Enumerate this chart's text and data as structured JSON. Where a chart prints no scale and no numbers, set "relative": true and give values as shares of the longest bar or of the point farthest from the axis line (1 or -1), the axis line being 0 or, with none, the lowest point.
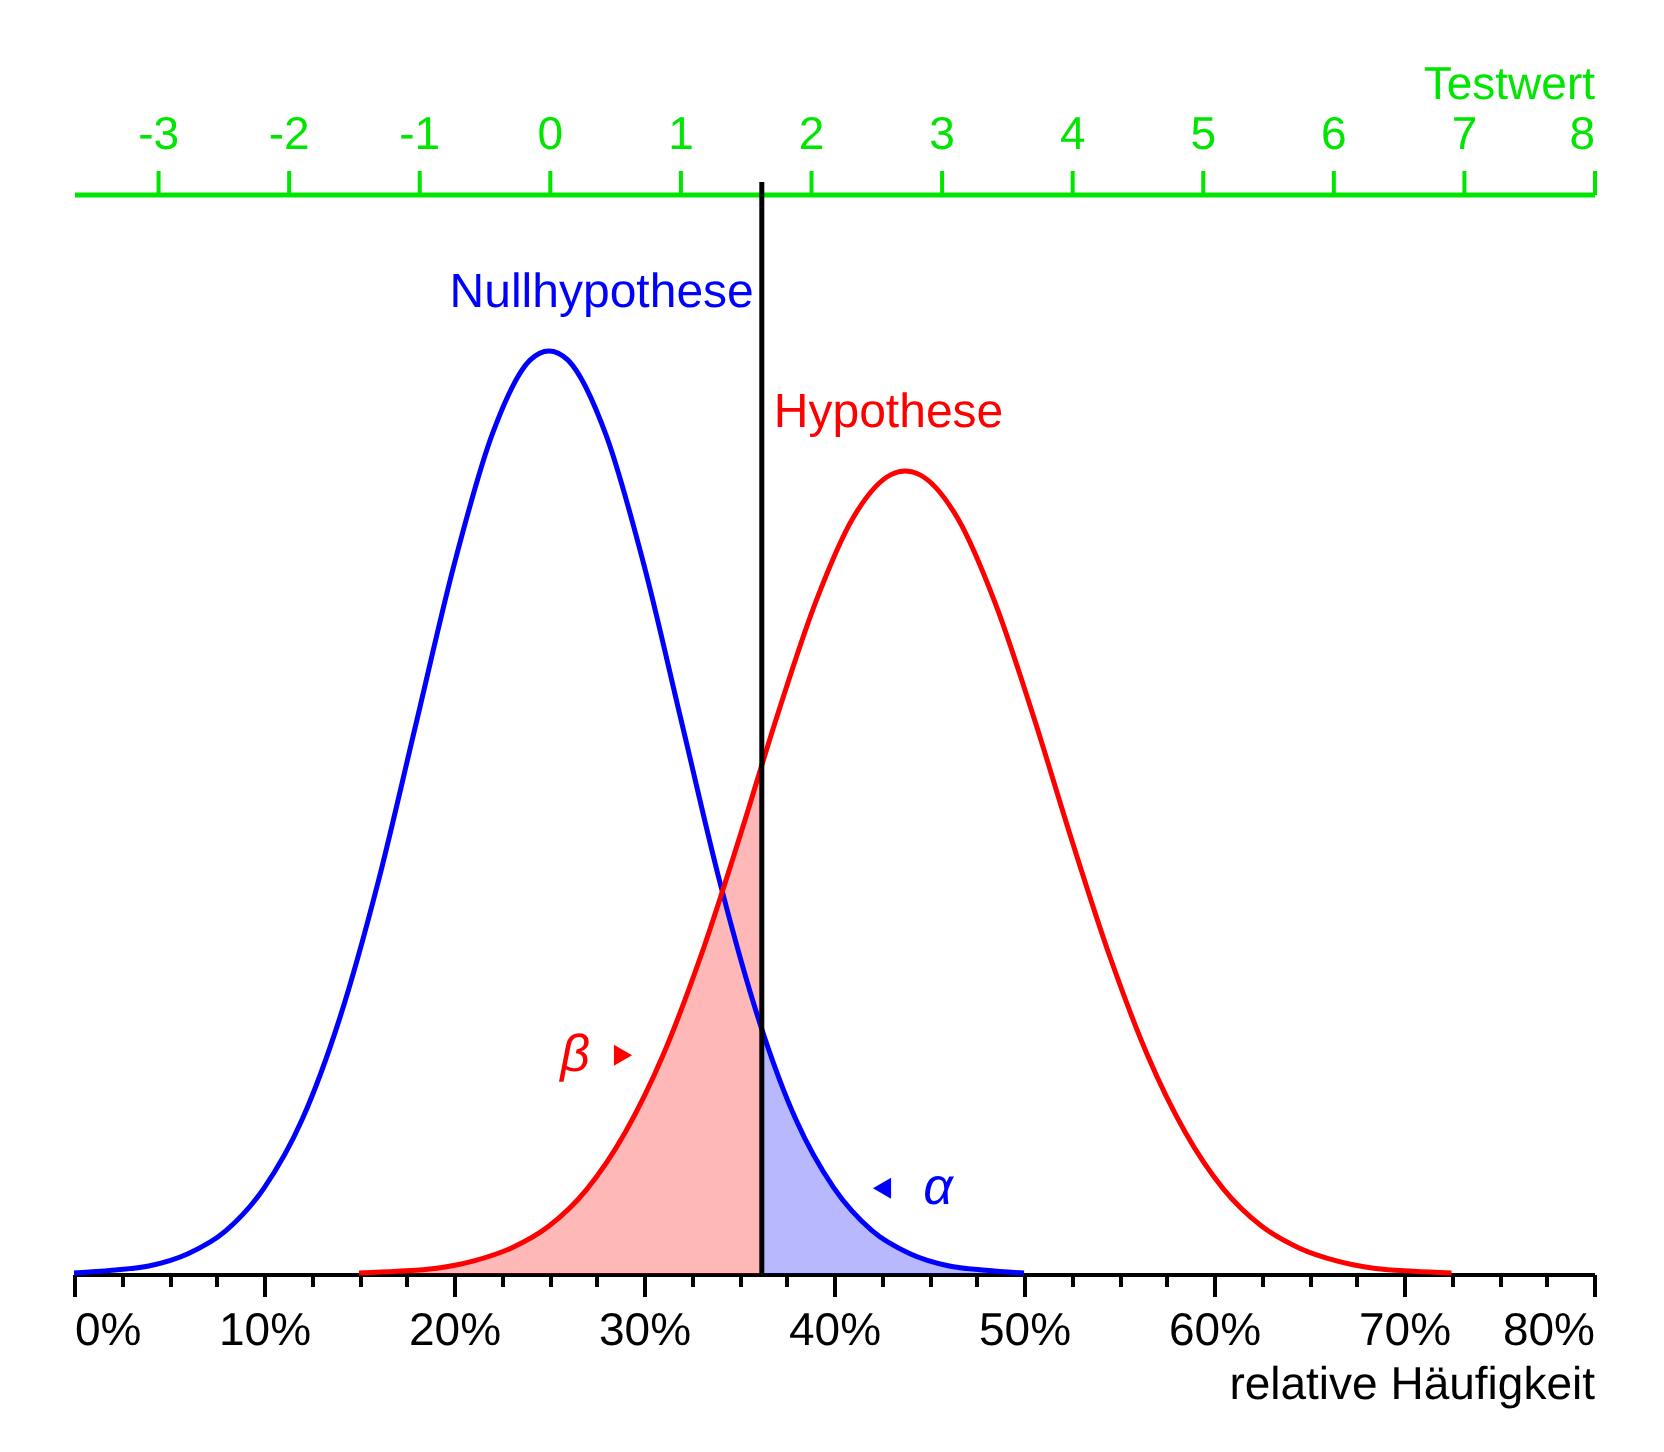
{
  "chart_data": {
    "type": "line",
    "relative": true,
    "xlabel": "relative Häufigkeit",
    "x2label": "Testwert",
    "xlim": [
      0,
      80
    ],
    "xticks": [
      {
        "value": 0,
        "label": "0%"
      },
      {
        "value": 2.5,
        "label": null
      },
      {
        "value": 5,
        "label": null
      },
      {
        "value": 7.5,
        "label": null
      },
      {
        "value": 10,
        "label": "10%"
      },
      {
        "value": 12.5,
        "label": null
      },
      {
        "value": 15,
        "label": null
      },
      {
        "value": 17.5,
        "label": null
      },
      {
        "value": 20,
        "label": "20%"
      },
      {
        "value": 22.5,
        "label": null
      },
      {
        "value": 25,
        "label": null
      },
      {
        "value": 27.5,
        "label": null
      },
      {
        "value": 30,
        "label": "30%"
      },
      {
        "value": 32.5,
        "label": null
      },
      {
        "value": 35,
        "label": null
      },
      {
        "value": 37.5,
        "label": null
      },
      {
        "value": 40,
        "label": "40%"
      },
      {
        "value": 42.5,
        "label": null
      },
      {
        "value": 45,
        "label": null
      },
      {
        "value": 47.5,
        "label": null
      },
      {
        "value": 50,
        "label": "50%"
      },
      {
        "value": 52.5,
        "label": null
      },
      {
        "value": 55,
        "label": null
      },
      {
        "value": 57.5,
        "label": null
      },
      {
        "value": 60,
        "label": "60%"
      },
      {
        "value": 62.5,
        "label": null
      },
      {
        "value": 65,
        "label": null
      },
      {
        "value": 67.5,
        "label": null
      },
      {
        "value": 70,
        "label": "70%"
      },
      {
        "value": 72.5,
        "label": null
      },
      {
        "value": 75,
        "label": null
      },
      {
        "value": 77.5,
        "label": null
      },
      {
        "value": 80,
        "label": "80%"
      }
    ],
    "x2lim": [
      -3.64,
      8
    ],
    "x2ticks": [
      -3,
      -2,
      -1,
      0,
      1,
      2,
      3,
      4,
      5,
      6,
      7,
      8
    ],
    "series": [
      {
        "name": "Nullhypothese",
        "color": "#0000ff",
        "x": [
          0,
          2,
          4,
          6,
          8,
          10,
          12,
          14,
          16,
          18,
          20,
          22,
          24,
          25,
          26,
          28,
          30,
          32,
          34,
          36,
          38,
          40,
          42,
          44,
          46,
          48,
          50
        ],
        "values": [
          0.001,
          0.004,
          0.009,
          0.022,
          0.047,
          0.093,
          0.167,
          0.278,
          0.424,
          0.596,
          0.768,
          0.909,
          0.99,
          1,
          0.99,
          0.909,
          0.768,
          0.596,
          0.424,
          0.278,
          0.167,
          0.093,
          0.047,
          0.022,
          0.009,
          0.004,
          0.001
        ]
      },
      {
        "name": "Hypothese",
        "color": "#ff0000",
        "x": [
          15,
          17,
          19,
          21,
          23,
          25,
          27,
          29,
          31,
          33,
          35,
          37,
          39,
          41,
          43,
          43.75,
          44.5,
          46.5,
          48.5,
          50.5,
          52.5,
          54.5,
          56.5,
          58.5,
          60.5,
          62.5,
          64.5,
          66.5,
          68.5,
          70.5,
          72.5
        ],
        "values": [
          0.001,
          0.003,
          0.006,
          0.014,
          0.028,
          0.052,
          0.092,
          0.153,
          0.237,
          0.345,
          0.471,
          0.604,
          0.726,
          0.819,
          0.866,
          0.87,
          0.866,
          0.819,
          0.726,
          0.604,
          0.471,
          0.345,
          0.237,
          0.153,
          0.092,
          0.052,
          0.028,
          0.014,
          0.006,
          0.003,
          0.001
        ]
      },
      {
        "name": "β",
        "type": "area",
        "color": "#ff0000",
        "x": [
          15,
          17,
          19,
          21,
          23,
          25,
          27,
          29,
          31,
          33,
          35,
          36.2
        ],
        "values": [
          0.001,
          0.003,
          0.006,
          0.014,
          0.028,
          0.052,
          0.092,
          0.153,
          0.237,
          0.345,
          0.471,
          0.551
        ]
      },
      {
        "name": "α",
        "type": "area",
        "color": "#0000ff",
        "x": [
          36.2,
          38,
          40,
          42,
          44,
          46,
          48,
          50
        ],
        "values": [
          0.265,
          0.167,
          0.093,
          0.047,
          0.022,
          0.009,
          0.004,
          0.001
        ]
      }
    ],
    "ref_lines": [
      {
        "axis": "x",
        "value": 36.2,
        "color": "#000000"
      }
    ]
  }
}
